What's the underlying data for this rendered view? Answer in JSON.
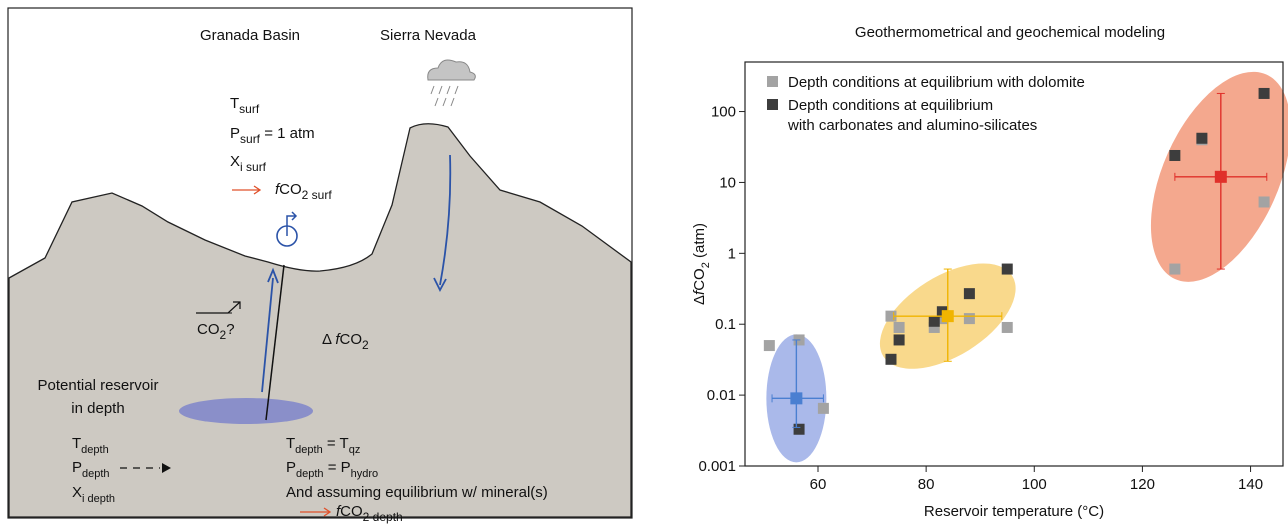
{
  "diagram": {
    "labels": [
      {
        "parts": [
          {
            "t": "Granada Basin"
          }
        ]
      },
      {
        "parts": [
          {
            "t": "Sierra Nevada"
          }
        ]
      },
      {
        "parts": [
          {
            "t": "T"
          },
          {
            "sub": "surf"
          }
        ]
      },
      {
        "parts": [
          {
            "t": "P"
          },
          {
            "sub": "surf"
          },
          {
            "t": " = 1 atm"
          }
        ]
      },
      {
        "parts": [
          {
            "t": "X"
          },
          {
            "sub": "i surf"
          }
        ]
      },
      {
        "parts": [
          {
            "i": "f"
          },
          {
            "t": "CO"
          },
          {
            "sub": "2 surf"
          }
        ]
      },
      {
        "parts": [
          {
            "t": "CO"
          },
          {
            "sub": "2"
          },
          {
            "t": "?"
          }
        ]
      },
      {
        "parts": [
          {
            "t": "Δ "
          },
          {
            "i": "f"
          },
          {
            "t": "CO"
          },
          {
            "sub": "2"
          }
        ]
      },
      {
        "parts": [
          {
            "t": "Potential reservoir"
          }
        ]
      },
      {
        "parts": [
          {
            "t": "in depth"
          }
        ]
      },
      {
        "parts": [
          {
            "t": "T"
          },
          {
            "sub": "depth"
          }
        ]
      },
      {
        "parts": [
          {
            "t": "P"
          },
          {
            "sub": "depth"
          }
        ]
      },
      {
        "parts": [
          {
            "t": "X"
          },
          {
            "sub": "i depth"
          }
        ]
      },
      {
        "parts": [
          {
            "t": "T"
          },
          {
            "sub": "depth"
          },
          {
            "t": " = T"
          },
          {
            "sub": "qz"
          }
        ]
      },
      {
        "parts": [
          {
            "t": "P"
          },
          {
            "sub": "depth"
          },
          {
            "t": " = P"
          },
          {
            "sub": "hydro"
          }
        ]
      },
      {
        "parts": [
          {
            "t": "And assuming equilibrium w/ mineral(s)"
          }
        ]
      },
      {
        "parts": [
          {
            "i": "f"
          },
          {
            "t": "CO"
          },
          {
            "sub": "2 depth"
          }
        ]
      }
    ]
  },
  "chart_data": {
    "type": "scatter",
    "title": "Geothermometrical and geochemical modeling",
    "x_label": "Reservoir temperature (°C)",
    "y_label": [
      {
        "t": "Δ"
      },
      {
        "i": "f"
      },
      {
        "t": "CO"
      },
      {
        "sub": "2"
      },
      {
        "t": " (atm)"
      }
    ],
    "xlim": [
      46.5,
      146
    ],
    "xticks": [
      60,
      80,
      100,
      120,
      140
    ],
    "ylim": [
      0.001,
      500
    ],
    "yticks": [
      0.001,
      0.01,
      0.1,
      1,
      10,
      100
    ],
    "log_y": true,
    "legend": "upper left",
    "series": [
      {
        "name": [
          "Depth conditions at equilibrium with dolomite"
        ],
        "color": "#a3a3a3",
        "x": [
          51,
          56.5,
          61,
          73.5,
          75,
          81.5,
          83,
          88,
          95,
          126,
          131,
          142.5
        ],
        "values": [
          0.05,
          0.06,
          0.0065,
          0.13,
          0.09,
          0.09,
          0.12,
          0.12,
          0.09,
          0.6,
          40,
          5.3
        ]
      },
      {
        "name": [
          "Depth conditions at equilibrium",
          "with carbonates and alumino-silicates"
        ],
        "color": "#3d3d3d",
        "x": [
          56.5,
          73.5,
          75,
          81.5,
          83,
          88,
          95,
          126,
          131,
          142.5
        ],
        "values": [
          0.0033,
          0.032,
          0.06,
          0.11,
          0.15,
          0.27,
          0.6,
          24,
          42,
          180
        ]
      }
    ],
    "errorbars": [
      {
        "color": "#4a7fd1",
        "x": 56,
        "y": 0.009,
        "xerr": [
          51.5,
          61
        ],
        "yerr": [
          0.0035,
          0.06
        ]
      },
      {
        "color": "#f0b400",
        "x": 84,
        "y": 0.13,
        "xerr": [
          74,
          94
        ],
        "yerr": [
          0.03,
          0.6
        ]
      },
      {
        "color": "#e0302a",
        "x": 134.5,
        "y": 12,
        "xerr": [
          126,
          143
        ],
        "yerr": [
          0.6,
          180
        ]
      }
    ]
  }
}
